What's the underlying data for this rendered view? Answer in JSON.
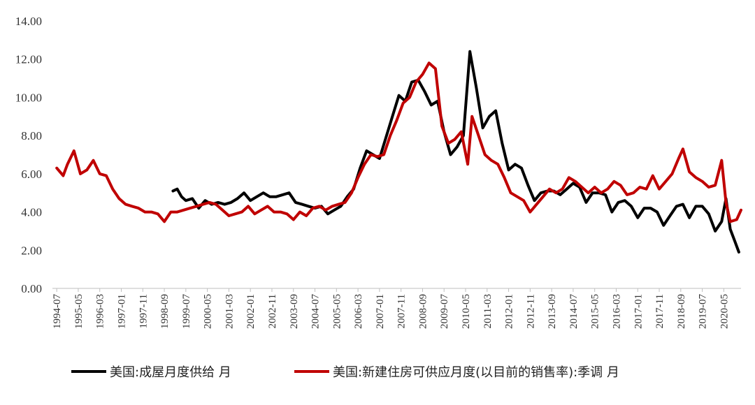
{
  "chart_data": {
    "type": "line",
    "title": "",
    "xlabel": "",
    "ylabel": "",
    "ylim": [
      0,
      14
    ],
    "yticks": [
      "0.00",
      "2.00",
      "4.00",
      "6.00",
      "8.00",
      "10.00",
      "12.00",
      "14.00"
    ],
    "xticks": [
      "1994-07",
      "1995-05",
      "1996-03",
      "1997-01",
      "1997-11",
      "1998-09",
      "1999-07",
      "2000-05",
      "2001-03",
      "2002-01",
      "2002-11",
      "2003-09",
      "2004-07",
      "2005-05",
      "2006-03",
      "2007-01",
      "2007-11",
      "2008-09",
      "2009-07",
      "2010-05",
      "2011-03",
      "2012-01",
      "2012-11",
      "2013-09",
      "2014-07",
      "2015-05",
      "2016-03",
      "2017-01",
      "2017-11",
      "2018-09",
      "2019-07",
      "2020-05"
    ],
    "grid": false,
    "legend_position": "bottom",
    "series": [
      {
        "name": "美国:成屋月度供给 月",
        "color": "#000000",
        "points": [
          [
            "1999-01",
            5.1
          ],
          [
            "1999-03",
            5.2
          ],
          [
            "1999-05",
            4.8
          ],
          [
            "1999-07",
            4.6
          ],
          [
            "1999-10",
            4.7
          ],
          [
            "2000-01",
            4.2
          ],
          [
            "2000-04",
            4.6
          ],
          [
            "2000-07",
            4.4
          ],
          [
            "2000-10",
            4.5
          ],
          [
            "2001-01",
            4.4
          ],
          [
            "2001-04",
            4.5
          ],
          [
            "2001-07",
            4.7
          ],
          [
            "2001-10",
            5.0
          ],
          [
            "2002-01",
            4.6
          ],
          [
            "2002-04",
            4.8
          ],
          [
            "2002-07",
            5.0
          ],
          [
            "2002-10",
            4.8
          ],
          [
            "2003-01",
            4.8
          ],
          [
            "2003-04",
            4.9
          ],
          [
            "2003-07",
            5.0
          ],
          [
            "2003-10",
            4.5
          ],
          [
            "2004-01",
            4.4
          ],
          [
            "2004-04",
            4.3
          ],
          [
            "2004-07",
            4.2
          ],
          [
            "2004-10",
            4.3
          ],
          [
            "2005-01",
            3.9
          ],
          [
            "2005-04",
            4.1
          ],
          [
            "2005-07",
            4.3
          ],
          [
            "2005-10",
            4.8
          ],
          [
            "2006-01",
            5.2
          ],
          [
            "2006-04",
            6.3
          ],
          [
            "2006-07",
            7.2
          ],
          [
            "2006-10",
            7.0
          ],
          [
            "2007-01",
            6.8
          ],
          [
            "2007-04",
            7.9
          ],
          [
            "2007-07",
            9.0
          ],
          [
            "2007-10",
            10.1
          ],
          [
            "2008-01",
            9.8
          ],
          [
            "2008-04",
            10.8
          ],
          [
            "2008-07",
            10.9
          ],
          [
            "2008-10",
            10.3
          ],
          [
            "2009-01",
            9.6
          ],
          [
            "2009-04",
            9.8
          ],
          [
            "2009-07",
            8.2
          ],
          [
            "2009-10",
            7.0
          ],
          [
            "2010-01",
            7.4
          ],
          [
            "2010-04",
            8.0
          ],
          [
            "2010-07",
            12.4
          ],
          [
            "2010-10",
            10.5
          ],
          [
            "2011-01",
            8.4
          ],
          [
            "2011-04",
            9.0
          ],
          [
            "2011-07",
            9.3
          ],
          [
            "2011-10",
            7.6
          ],
          [
            "2012-01",
            6.2
          ],
          [
            "2012-04",
            6.5
          ],
          [
            "2012-07",
            6.3
          ],
          [
            "2012-10",
            5.4
          ],
          [
            "2013-01",
            4.6
          ],
          [
            "2013-04",
            5.0
          ],
          [
            "2013-07",
            5.1
          ],
          [
            "2013-10",
            5.1
          ],
          [
            "2014-01",
            4.9
          ],
          [
            "2014-04",
            5.2
          ],
          [
            "2014-07",
            5.5
          ],
          [
            "2014-10",
            5.3
          ],
          [
            "2015-01",
            4.5
          ],
          [
            "2015-04",
            5.0
          ],
          [
            "2015-07",
            5.0
          ],
          [
            "2015-10",
            4.9
          ],
          [
            "2016-01",
            4.0
          ],
          [
            "2016-04",
            4.5
          ],
          [
            "2016-07",
            4.6
          ],
          [
            "2016-10",
            4.3
          ],
          [
            "2017-01",
            3.7
          ],
          [
            "2017-04",
            4.2
          ],
          [
            "2017-07",
            4.2
          ],
          [
            "2017-10",
            4.0
          ],
          [
            "2018-01",
            3.3
          ],
          [
            "2018-04",
            3.8
          ],
          [
            "2018-07",
            4.3
          ],
          [
            "2018-10",
            4.4
          ],
          [
            "2019-01",
            3.7
          ],
          [
            "2019-04",
            4.3
          ],
          [
            "2019-07",
            4.3
          ],
          [
            "2019-10",
            3.9
          ],
          [
            "2020-01",
            3.0
          ],
          [
            "2020-04",
            3.5
          ],
          [
            "2020-06",
            4.7
          ],
          [
            "2020-08",
            3.1
          ],
          [
            "2020-10",
            2.5
          ],
          [
            "2020-12",
            1.9
          ]
        ]
      },
      {
        "name": "美国:新建住房可供应月度(以目前的销售率):季调 月",
        "color": "#c00000",
        "points": [
          [
            "1994-07",
            6.3
          ],
          [
            "1994-10",
            5.9
          ],
          [
            "1994-12",
            6.5
          ],
          [
            "1995-03",
            7.2
          ],
          [
            "1995-06",
            6.0
          ],
          [
            "1995-09",
            6.2
          ],
          [
            "1995-12",
            6.7
          ],
          [
            "1996-03",
            6.0
          ],
          [
            "1996-06",
            5.9
          ],
          [
            "1996-09",
            5.2
          ],
          [
            "1996-12",
            4.7
          ],
          [
            "1997-03",
            4.4
          ],
          [
            "1997-06",
            4.3
          ],
          [
            "1997-09",
            4.2
          ],
          [
            "1997-12",
            4.0
          ],
          [
            "1998-03",
            4.0
          ],
          [
            "1998-06",
            3.9
          ],
          [
            "1998-09",
            3.5
          ],
          [
            "1998-12",
            4.0
          ],
          [
            "1999-03",
            4.0
          ],
          [
            "1999-06",
            4.1
          ],
          [
            "1999-09",
            4.2
          ],
          [
            "1999-12",
            4.3
          ],
          [
            "2000-03",
            4.4
          ],
          [
            "2000-06",
            4.5
          ],
          [
            "2000-09",
            4.4
          ],
          [
            "2000-12",
            4.1
          ],
          [
            "2001-03",
            3.8
          ],
          [
            "2001-06",
            3.9
          ],
          [
            "2001-09",
            4.0
          ],
          [
            "2001-12",
            4.3
          ],
          [
            "2002-03",
            3.9
          ],
          [
            "2002-06",
            4.1
          ],
          [
            "2002-09",
            4.3
          ],
          [
            "2002-12",
            4.0
          ],
          [
            "2003-03",
            4.0
          ],
          [
            "2003-06",
            3.9
          ],
          [
            "2003-09",
            3.6
          ],
          [
            "2003-12",
            4.0
          ],
          [
            "2004-03",
            3.8
          ],
          [
            "2004-06",
            4.2
          ],
          [
            "2004-09",
            4.3
          ],
          [
            "2004-12",
            4.1
          ],
          [
            "2005-03",
            4.3
          ],
          [
            "2005-06",
            4.4
          ],
          [
            "2005-09",
            4.5
          ],
          [
            "2005-12",
            5.0
          ],
          [
            "2006-03",
            5.8
          ],
          [
            "2006-06",
            6.5
          ],
          [
            "2006-09",
            7.0
          ],
          [
            "2006-12",
            6.9
          ],
          [
            "2007-03",
            7.0
          ],
          [
            "2007-06",
            8.0
          ],
          [
            "2007-09",
            8.8
          ],
          [
            "2007-12",
            9.7
          ],
          [
            "2008-03",
            10.0
          ],
          [
            "2008-06",
            10.8
          ],
          [
            "2008-09",
            11.2
          ],
          [
            "2008-12",
            11.8
          ],
          [
            "2009-03",
            11.5
          ],
          [
            "2009-06",
            8.5
          ],
          [
            "2009-09",
            7.6
          ],
          [
            "2009-12",
            7.8
          ],
          [
            "2010-03",
            8.2
          ],
          [
            "2010-06",
            6.5
          ],
          [
            "2010-08",
            9.0
          ],
          [
            "2010-11",
            8.0
          ],
          [
            "2011-02",
            7.0
          ],
          [
            "2011-05",
            6.7
          ],
          [
            "2011-08",
            6.5
          ],
          [
            "2011-11",
            5.8
          ],
          [
            "2012-02",
            5.0
          ],
          [
            "2012-05",
            4.8
          ],
          [
            "2012-08",
            4.6
          ],
          [
            "2012-11",
            4.0
          ],
          [
            "2013-02",
            4.4
          ],
          [
            "2013-05",
            4.8
          ],
          [
            "2013-08",
            5.2
          ],
          [
            "2013-11",
            5.0
          ],
          [
            "2014-02",
            5.2
          ],
          [
            "2014-05",
            5.8
          ],
          [
            "2014-08",
            5.6
          ],
          [
            "2014-11",
            5.3
          ],
          [
            "2015-02",
            5.0
          ],
          [
            "2015-05",
            5.3
          ],
          [
            "2015-08",
            5.0
          ],
          [
            "2015-11",
            5.2
          ],
          [
            "2016-02",
            5.6
          ],
          [
            "2016-05",
            5.4
          ],
          [
            "2016-08",
            4.9
          ],
          [
            "2016-11",
            5.0
          ],
          [
            "2017-02",
            5.3
          ],
          [
            "2017-05",
            5.2
          ],
          [
            "2017-08",
            5.9
          ],
          [
            "2017-11",
            5.2
          ],
          [
            "2018-02",
            5.6
          ],
          [
            "2018-05",
            6.0
          ],
          [
            "2018-08",
            6.8
          ],
          [
            "2018-10",
            7.3
          ],
          [
            "2019-01",
            6.1
          ],
          [
            "2019-04",
            5.8
          ],
          [
            "2019-07",
            5.6
          ],
          [
            "2019-10",
            5.3
          ],
          [
            "2020-01",
            5.4
          ],
          [
            "2020-04",
            6.7
          ],
          [
            "2020-06",
            4.5
          ],
          [
            "2020-08",
            3.5
          ],
          [
            "2020-11",
            3.6
          ],
          [
            "2021-01",
            4.1
          ]
        ]
      }
    ]
  }
}
